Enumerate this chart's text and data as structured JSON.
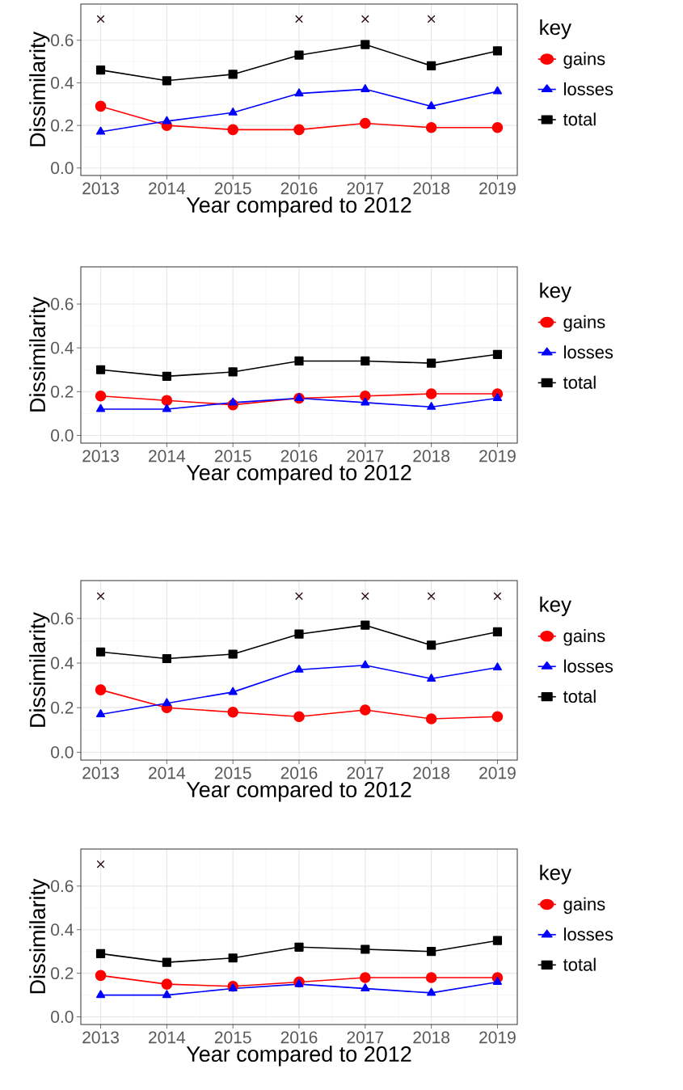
{
  "chart_data": [
    {
      "type": "line",
      "categories": [
        "2013",
        "2014",
        "2015",
        "2016",
        "2017",
        "2018",
        "2019"
      ],
      "xlabel": "Year compared to 2012",
      "ylabel": "Dissimilarity",
      "legend_title": "key",
      "legend": "right",
      "grid": true,
      "ylim": [
        -0.035,
        0.77
      ],
      "yticks": [
        {
          "value": 0,
          "label": "0.0"
        },
        {
          "value": 0.2,
          "label": "0.2"
        },
        {
          "value": 0.4,
          "label": "0.4"
        },
        {
          "value": 0.6,
          "label": "0.6"
        }
      ],
      "series": [
        {
          "name": "gains",
          "color": "#ff0000",
          "marker": "circle",
          "values": [
            0.29,
            0.2,
            0.18,
            0.18,
            0.21,
            0.19,
            0.19
          ]
        },
        {
          "name": "losses",
          "color": "#0000ff",
          "marker": "triangle",
          "values": [
            0.17,
            0.22,
            0.26,
            0.35,
            0.37,
            0.29,
            0.36
          ]
        },
        {
          "name": "total",
          "color": "#000000",
          "marker": "square",
          "values": [
            0.46,
            0.41,
            0.44,
            0.53,
            0.58,
            0.48,
            0.55
          ]
        },
        {
          "type": "scatter",
          "color": "#2b0a1a",
          "marker": "cross",
          "values": [
            0.7,
            null,
            null,
            0.7,
            0.7,
            0.7,
            null
          ]
        }
      ]
    },
    {
      "type": "line",
      "categories": [
        "2013",
        "2014",
        "2015",
        "2016",
        "2017",
        "2018",
        "2019"
      ],
      "xlabel": "Year compared to 2012",
      "ylabel": "Dissimilarity",
      "legend_title": "key",
      "legend": "right",
      "grid": true,
      "ylim": [
        -0.035,
        0.77
      ],
      "yticks": [
        {
          "value": 0,
          "label": "0.0"
        },
        {
          "value": 0.2,
          "label": "0.2"
        },
        {
          "value": 0.4,
          "label": "0.4"
        },
        {
          "value": 0.6,
          "label": "0.6"
        }
      ],
      "series": [
        {
          "name": "gains",
          "color": "#ff0000",
          "marker": "circle",
          "values": [
            0.18,
            0.16,
            0.14,
            0.17,
            0.18,
            0.19,
            0.19
          ]
        },
        {
          "name": "losses",
          "color": "#0000ff",
          "marker": "triangle",
          "values": [
            0.12,
            0.12,
            0.15,
            0.17,
            0.15,
            0.13,
            0.17
          ]
        },
        {
          "name": "total",
          "color": "#000000",
          "marker": "square",
          "values": [
            0.3,
            0.27,
            0.29,
            0.34,
            0.34,
            0.33,
            0.37
          ]
        }
      ]
    },
    {
      "type": "line",
      "categories": [
        "2013",
        "2014",
        "2015",
        "2016",
        "2017",
        "2018",
        "2019"
      ],
      "xlabel": "Year compared to 2012",
      "ylabel": "Dissimilarity",
      "legend_title": "key",
      "legend": "right",
      "grid": true,
      "ylim": [
        -0.035,
        0.77
      ],
      "yticks": [
        {
          "value": 0,
          "label": "0.0"
        },
        {
          "value": 0.2,
          "label": "0.2"
        },
        {
          "value": 0.4,
          "label": "0.4"
        },
        {
          "value": 0.6,
          "label": "0.6"
        }
      ],
      "series": [
        {
          "name": "gains",
          "color": "#ff0000",
          "marker": "circle",
          "values": [
            0.28,
            0.2,
            0.18,
            0.16,
            0.19,
            0.15,
            0.16
          ]
        },
        {
          "name": "losses",
          "color": "#0000ff",
          "marker": "triangle",
          "values": [
            0.17,
            0.22,
            0.27,
            0.37,
            0.39,
            0.33,
            0.38
          ]
        },
        {
          "name": "total",
          "color": "#000000",
          "marker": "square",
          "values": [
            0.45,
            0.42,
            0.44,
            0.53,
            0.57,
            0.48,
            0.54
          ]
        },
        {
          "type": "scatter",
          "color": "#2b0a1a",
          "marker": "cross",
          "values": [
            0.7,
            null,
            null,
            0.7,
            0.7,
            0.7,
            0.7
          ]
        }
      ]
    },
    {
      "type": "line",
      "categories": [
        "2013",
        "2014",
        "2015",
        "2016",
        "2017",
        "2018",
        "2019"
      ],
      "xlabel": "Year compared to 2012",
      "ylabel": "Dissimilarity",
      "legend_title": "key",
      "legend": "right",
      "grid": true,
      "ylim": [
        -0.035,
        0.77
      ],
      "yticks": [
        {
          "value": 0,
          "label": "0.0"
        },
        {
          "value": 0.2,
          "label": "0.2"
        },
        {
          "value": 0.4,
          "label": "0.4"
        },
        {
          "value": 0.6,
          "label": "0.6"
        }
      ],
      "series": [
        {
          "name": "gains",
          "color": "#ff0000",
          "marker": "circle",
          "values": [
            0.19,
            0.15,
            0.14,
            0.16,
            0.18,
            0.18,
            0.18
          ]
        },
        {
          "name": "losses",
          "color": "#0000ff",
          "marker": "triangle",
          "values": [
            0.1,
            0.1,
            0.13,
            0.15,
            0.13,
            0.11,
            0.16
          ]
        },
        {
          "name": "total",
          "color": "#000000",
          "marker": "square",
          "values": [
            0.29,
            0.25,
            0.27,
            0.32,
            0.31,
            0.3,
            0.35
          ]
        },
        {
          "type": "scatter",
          "color": "#2b0a1a",
          "marker": "cross",
          "values": [
            0.7,
            null,
            null,
            null,
            null,
            null,
            null
          ]
        }
      ]
    }
  ]
}
